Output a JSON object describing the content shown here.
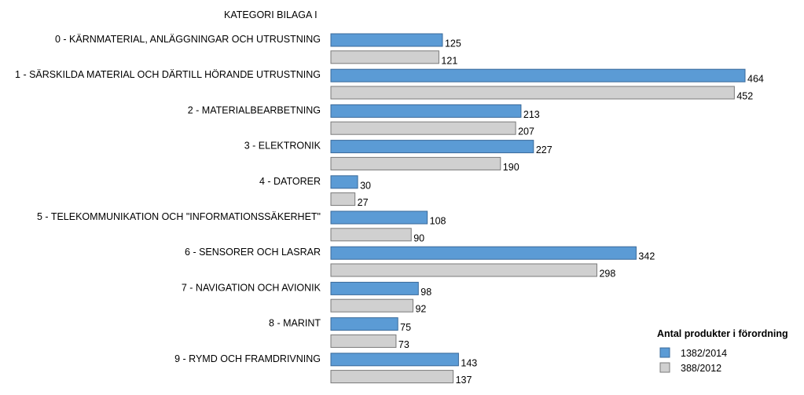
{
  "chart_data": {
    "type": "bar",
    "orientation": "horizontal",
    "title": "",
    "category_heading": "KATEGORI BILAGA I",
    "categories": [
      "0 - KÄRNMATERIAL,  ANLÄGGNINGAR  OCH UTRUSTNING",
      "1 - SÄRSKILDA MATERIAL  OCH DÄRTILL HÖRANDE UTRUSTNING",
      "2 - MATERIALBEARBETNING",
      "3 - ELEKTRONIK",
      "4 - DATORER",
      "5 - TELEKOMMUNIKATION  OCH \"INFORMATIONSSÄKERHET\"",
      "6 - SENSORER OCH LASRAR",
      "7 - NAVIGATION  OCH AVIONIK",
      "8 - MARINT",
      "9 - RYMD OCH FRAMDRIVNING"
    ],
    "series": [
      {
        "name": "1382/2014",
        "color": "#5b9bd5",
        "values": [
          125,
          464,
          213,
          227,
          30,
          108,
          342,
          98,
          75,
          143
        ]
      },
      {
        "name": "388/2012",
        "color": "#d0d0d0",
        "values": [
          121,
          452,
          207,
          190,
          27,
          90,
          298,
          92,
          73,
          137
        ]
      }
    ],
    "xlim": [
      0,
      464
    ],
    "grid": false,
    "legend": {
      "title": "Antal  produkter i förordning",
      "position": "bottom-right"
    }
  }
}
